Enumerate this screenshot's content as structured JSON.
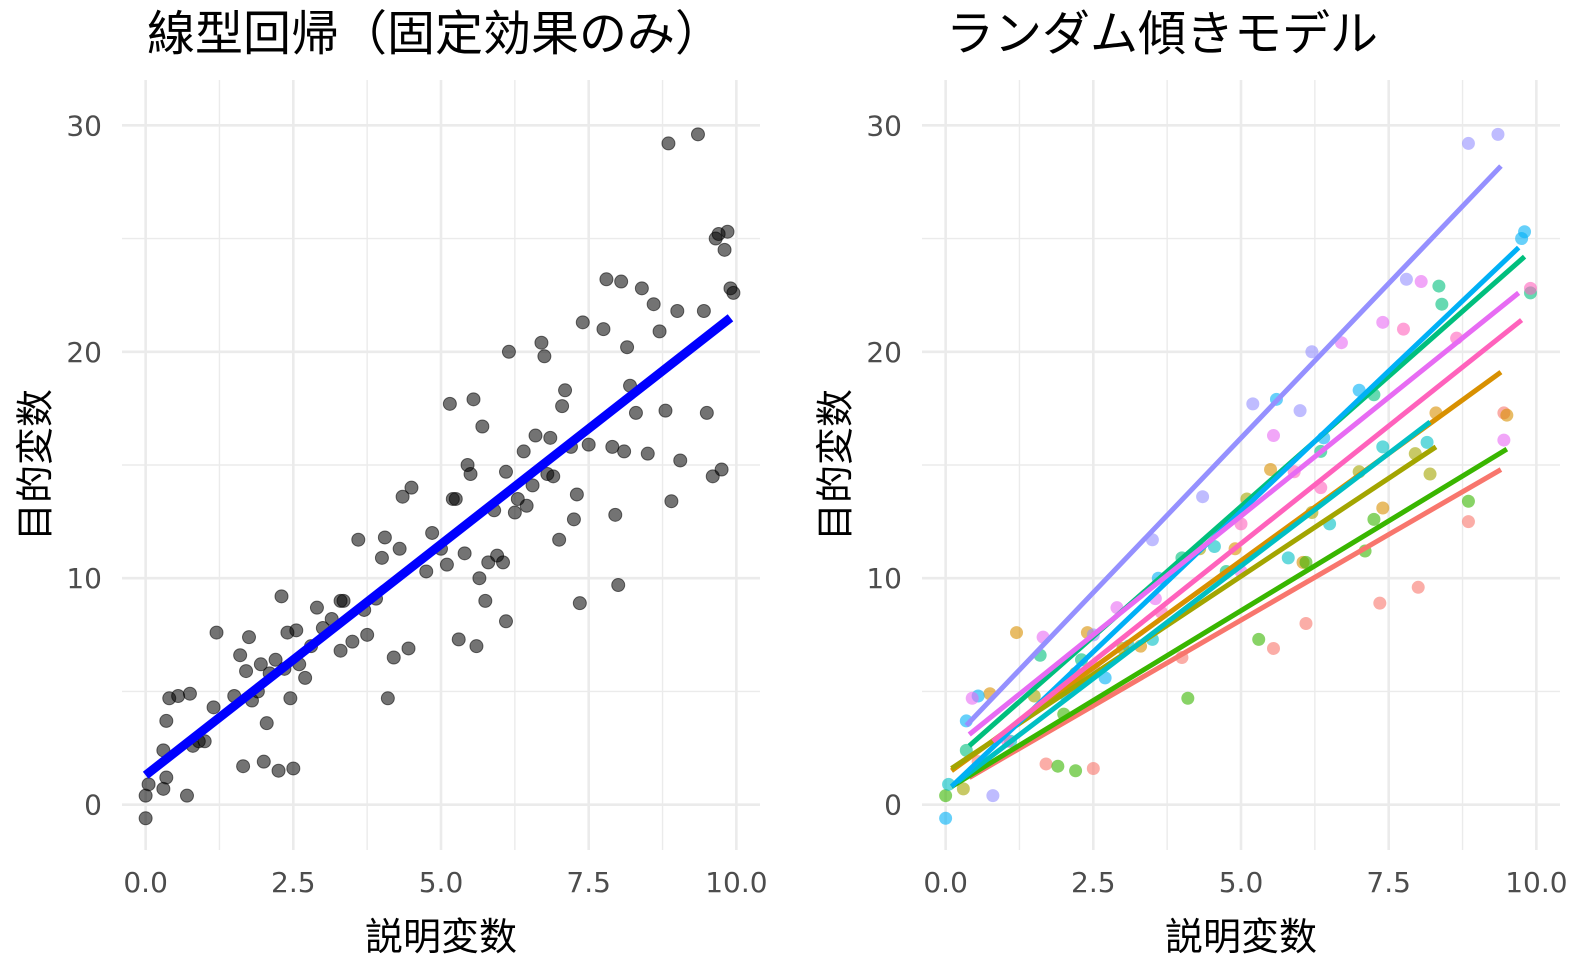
{
  "chart_data": [
    {
      "type": "scatter",
      "title": "線型回帰（固定効果のみ）",
      "xlabel": "説明変数",
      "ylabel": "目的変数",
      "xlim": [
        -0.4,
        10.4
      ],
      "ylim": [
        -2,
        32
      ],
      "x_ticks": [
        "0.0",
        "2.5",
        "5.0",
        "7.5",
        "10.0"
      ],
      "y_ticks": [
        "0",
        "10",
        "20",
        "30"
      ],
      "grid": true,
      "point_color": "#000000",
      "fit_color": "#0000ff",
      "points": [
        [
          0.0,
          -0.6
        ],
        [
          0.0,
          0.4
        ],
        [
          0.05,
          0.9
        ],
        [
          0.3,
          0.7
        ],
        [
          0.35,
          1.2
        ],
        [
          0.3,
          2.4
        ],
        [
          0.35,
          3.7
        ],
        [
          0.4,
          4.7
        ],
        [
          0.55,
          4.8
        ],
        [
          0.75,
          4.9
        ],
        [
          0.7,
          0.4
        ],
        [
          0.8,
          2.6
        ],
        [
          0.9,
          2.8
        ],
        [
          1.0,
          2.8
        ],
        [
          1.15,
          4.3
        ],
        [
          1.2,
          7.6
        ],
        [
          1.5,
          4.8
        ],
        [
          1.6,
          6.6
        ],
        [
          1.65,
          1.7
        ],
        [
          1.7,
          5.9
        ],
        [
          1.75,
          7.4
        ],
        [
          1.8,
          4.6
        ],
        [
          1.9,
          5.0
        ],
        [
          1.95,
          6.2
        ],
        [
          2.0,
          1.9
        ],
        [
          2.05,
          3.6
        ],
        [
          2.1,
          5.8
        ],
        [
          2.2,
          6.4
        ],
        [
          2.25,
          1.5
        ],
        [
          2.3,
          9.2
        ],
        [
          2.35,
          6.0
        ],
        [
          2.4,
          7.6
        ],
        [
          2.45,
          4.7
        ],
        [
          2.5,
          1.6
        ],
        [
          2.55,
          7.7
        ],
        [
          2.6,
          6.2
        ],
        [
          2.7,
          5.6
        ],
        [
          2.8,
          7.0
        ],
        [
          2.9,
          8.7
        ],
        [
          3.0,
          7.8
        ],
        [
          3.15,
          8.2
        ],
        [
          3.3,
          6.8
        ],
        [
          3.35,
          9.0
        ],
        [
          3.5,
          7.2
        ],
        [
          3.6,
          11.7
        ],
        [
          3.7,
          8.6
        ],
        [
          3.75,
          7.5
        ],
        [
          3.9,
          9.1
        ],
        [
          4.0,
          10.9
        ],
        [
          4.05,
          11.8
        ],
        [
          4.1,
          4.7
        ],
        [
          4.2,
          6.5
        ],
        [
          4.3,
          11.3
        ],
        [
          4.35,
          13.6
        ],
        [
          4.45,
          6.9
        ],
        [
          4.5,
          14.0
        ],
        [
          4.75,
          10.3
        ],
        [
          4.85,
          12.0
        ],
        [
          5.0,
          11.3
        ],
        [
          5.1,
          10.6
        ],
        [
          5.15,
          17.7
        ],
        [
          5.25,
          13.5
        ],
        [
          5.3,
          7.3
        ],
        [
          5.4,
          11.1
        ],
        [
          5.45,
          15.0
        ],
        [
          5.5,
          14.6
        ],
        [
          5.55,
          17.9
        ],
        [
          5.6,
          7.0
        ],
        [
          5.65,
          10.0
        ],
        [
          5.7,
          16.7
        ],
        [
          5.75,
          9.0
        ],
        [
          5.8,
          10.7
        ],
        [
          5.9,
          13.0
        ],
        [
          5.95,
          11.0
        ],
        [
          6.05,
          10.7
        ],
        [
          6.1,
          8.1
        ],
        [
          6.1,
          14.7
        ],
        [
          6.15,
          20.0
        ],
        [
          6.25,
          12.9
        ],
        [
          6.3,
          13.5
        ],
        [
          6.4,
          15.6
        ],
        [
          6.45,
          13.2
        ],
        [
          6.55,
          14.1
        ],
        [
          6.6,
          16.3
        ],
        [
          6.7,
          20.4
        ],
        [
          6.75,
          19.8
        ],
        [
          6.8,
          14.6
        ],
        [
          6.9,
          14.5
        ],
        [
          7.0,
          11.7
        ],
        [
          7.05,
          17.6
        ],
        [
          7.1,
          18.3
        ],
        [
          7.2,
          15.8
        ],
        [
          7.25,
          12.6
        ],
        [
          7.3,
          13.7
        ],
        [
          7.35,
          8.9
        ],
        [
          7.4,
          21.3
        ],
        [
          7.5,
          15.9
        ],
        [
          7.75,
          21.0
        ],
        [
          7.8,
          23.2
        ],
        [
          7.9,
          15.8
        ],
        [
          7.95,
          12.8
        ],
        [
          8.0,
          9.7
        ],
        [
          8.05,
          23.1
        ],
        [
          8.1,
          15.6
        ],
        [
          8.15,
          20.2
        ],
        [
          8.2,
          18.5
        ],
        [
          8.3,
          17.3
        ],
        [
          8.4,
          22.8
        ],
        [
          8.5,
          15.5
        ],
        [
          8.6,
          22.1
        ],
        [
          8.7,
          20.9
        ],
        [
          8.8,
          17.4
        ],
        [
          8.85,
          29.2
        ],
        [
          8.9,
          13.4
        ],
        [
          9.0,
          21.8
        ],
        [
          9.05,
          15.2
        ],
        [
          9.35,
          29.6
        ],
        [
          9.45,
          21.8
        ],
        [
          9.5,
          17.3
        ],
        [
          9.6,
          14.5
        ],
        [
          9.65,
          25.0
        ],
        [
          9.7,
          25.2
        ],
        [
          9.75,
          14.8
        ],
        [
          9.8,
          24.5
        ],
        [
          9.85,
          25.3
        ],
        [
          9.9,
          22.8
        ],
        [
          9.95,
          22.6
        ],
        [
          5.2,
          13.5
        ],
        [
          6.85,
          16.2
        ],
        [
          3.3,
          9.0
        ]
      ],
      "fit_line": {
        "x": [
          0.0,
          9.9
        ],
        "y": [
          1.3,
          21.5
        ]
      }
    },
    {
      "type": "scatter",
      "title": "ランダム傾きモデル",
      "xlabel": "説明変数",
      "ylabel": "目的変数",
      "xlim": [
        -0.4,
        10.4
      ],
      "ylim": [
        -2,
        32
      ],
      "x_ticks": [
        "0.0",
        "2.5",
        "5.0",
        "7.5",
        "10.0"
      ],
      "y_ticks": [
        "0",
        "10",
        "20",
        "30"
      ],
      "grid": true,
      "groups": [
        {
          "color": "#f8766d",
          "line": {
            "x": [
              0.4,
              9.4
            ],
            "y": [
              1.2,
              14.8
            ]
          },
          "points": [
            [
              0.55,
              1.9
            ],
            [
              1.7,
              1.8
            ],
            [
              2.5,
              1.6
            ],
            [
              4.0,
              6.5
            ],
            [
              5.55,
              6.9
            ],
            [
              6.1,
              8.0
            ],
            [
              7.35,
              8.9
            ],
            [
              8.0,
              9.6
            ],
            [
              8.85,
              12.5
            ],
            [
              9.45,
              17.3
            ]
          ]
        },
        {
          "color": "#d89000",
          "line": {
            "x": [
              0.1,
              9.4
            ],
            "y": [
              1.5,
              19.1
            ]
          },
          "points": [
            [
              0.75,
              4.9
            ],
            [
              1.2,
              7.6
            ],
            [
              2.4,
              7.6
            ],
            [
              3.3,
              7.0
            ],
            [
              4.9,
              11.3
            ],
            [
              5.5,
              14.8
            ],
            [
              6.05,
              10.7
            ],
            [
              7.4,
              13.1
            ],
            [
              8.3,
              17.3
            ],
            [
              9.5,
              17.2
            ]
          ]
        },
        {
          "color": "#a3a500",
          "line": {
            "x": [
              0.1,
              8.3
            ],
            "y": [
              1.6,
              15.8
            ]
          },
          "points": [
            [
              0.3,
              0.7
            ],
            [
              1.5,
              4.8
            ],
            [
              2.2,
              5.8
            ],
            [
              3.0,
              6.9
            ],
            [
              4.3,
              11.3
            ],
            [
              5.1,
              13.5
            ],
            [
              6.2,
              12.9
            ],
            [
              7.0,
              14.7
            ],
            [
              7.95,
              15.5
            ],
            [
              8.2,
              14.6
            ]
          ]
        },
        {
          "color": "#39b600",
          "line": {
            "x": [
              0.1,
              9.5
            ],
            "y": [
              0.8,
              15.7
            ]
          },
          "points": [
            [
              0.0,
              0.4
            ],
            [
              1.9,
              1.7
            ],
            [
              2.2,
              1.5
            ],
            [
              2.0,
              4.0
            ],
            [
              4.1,
              4.7
            ],
            [
              5.3,
              7.3
            ],
            [
              6.1,
              10.7
            ],
            [
              7.1,
              11.2
            ],
            [
              7.25,
              12.6
            ],
            [
              8.85,
              13.4
            ]
          ]
        },
        {
          "color": "#00bf7d",
          "line": {
            "x": [
              0.4,
              9.8
            ],
            "y": [
              2.6,
              24.2
            ]
          },
          "points": [
            [
              0.35,
              2.4
            ],
            [
              1.6,
              6.6
            ],
            [
              2.3,
              6.4
            ],
            [
              4.0,
              10.9
            ],
            [
              4.75,
              10.3
            ],
            [
              6.35,
              15.6
            ],
            [
              7.25,
              18.1
            ],
            [
              8.35,
              22.9
            ],
            [
              8.4,
              22.1
            ],
            [
              9.9,
              22.6
            ]
          ]
        },
        {
          "color": "#00bfc4",
          "line": {
            "x": [
              0.2,
              8.2
            ],
            "y": [
              1.0,
              16.9
            ]
          },
          "points": [
            [
              0.05,
              0.9
            ],
            [
              1.1,
              2.8
            ],
            [
              2.0,
              4.9
            ],
            [
              3.1,
              7.0
            ],
            [
              3.5,
              7.3
            ],
            [
              4.55,
              11.4
            ],
            [
              5.8,
              10.9
            ],
            [
              6.5,
              12.4
            ],
            [
              7.4,
              15.8
            ],
            [
              8.15,
              16.0
            ]
          ]
        },
        {
          "color": "#00b0f6",
          "line": {
            "x": [
              0.1,
              9.7
            ],
            "y": [
              0.8,
              24.6
            ]
          },
          "points": [
            [
              0.0,
              -0.6
            ],
            [
              0.35,
              3.7
            ],
            [
              0.55,
              4.8
            ],
            [
              2.7,
              5.6
            ],
            [
              3.6,
              10.0
            ],
            [
              5.6,
              17.9
            ],
            [
              6.4,
              16.2
            ],
            [
              7.0,
              18.3
            ],
            [
              9.75,
              25.0
            ],
            [
              9.8,
              25.3
            ]
          ]
        },
        {
          "color": "#9590ff",
          "line": {
            "x": [
              0.35,
              9.4
            ],
            "y": [
              3.5,
              28.2
            ]
          },
          "points": [
            [
              0.8,
              0.4
            ],
            [
              2.5,
              7.5
            ],
            [
              3.5,
              11.7
            ],
            [
              4.35,
              13.6
            ],
            [
              5.2,
              17.7
            ],
            [
              6.0,
              17.4
            ],
            [
              6.2,
              20.0
            ],
            [
              7.8,
              23.2
            ],
            [
              8.85,
              29.2
            ],
            [
              9.35,
              29.6
            ]
          ]
        },
        {
          "color": "#e76bf3",
          "line": {
            "x": [
              0.4,
              9.7
            ],
            "y": [
              3.1,
              22.6
            ]
          },
          "points": [
            [
              0.45,
              4.7
            ],
            [
              1.65,
              7.4
            ],
            [
              2.9,
              8.7
            ],
            [
              3.55,
              9.1
            ],
            [
              5.0,
              10.3
            ],
            [
              5.55,
              16.3
            ],
            [
              6.7,
              20.4
            ],
            [
              7.4,
              21.3
            ],
            [
              8.05,
              23.1
            ],
            [
              9.45,
              16.1
            ]
          ]
        },
        {
          "color": "#ff62bc",
          "line": {
            "x": [
              0.8,
              9.75
            ],
            "y": [
              2.8,
              21.4
            ]
          },
          "points": [
            [
              1.05,
              2.8
            ],
            [
              2.1,
              5.0
            ],
            [
              2.5,
              6.1
            ],
            [
              3.65,
              8.5
            ],
            [
              5.0,
              12.4
            ],
            [
              5.9,
              14.7
            ],
            [
              6.35,
              14.0
            ],
            [
              7.75,
              21.0
            ],
            [
              8.65,
              20.6
            ],
            [
              9.9,
              22.8
            ]
          ]
        }
      ]
    }
  ]
}
